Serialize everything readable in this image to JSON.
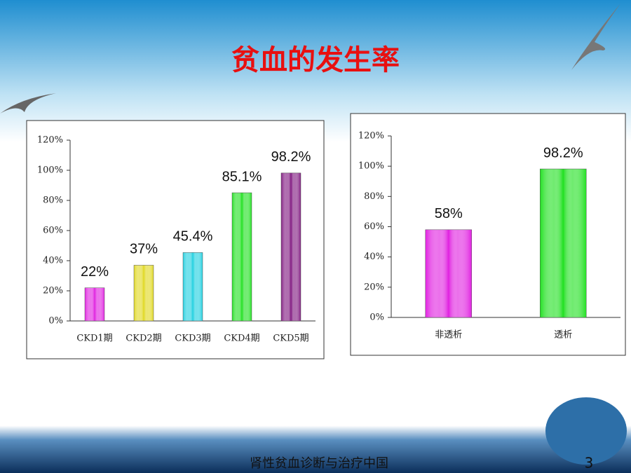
{
  "title": "贫血的发生率",
  "chart_data": [
    {
      "type": "bar",
      "categories": [
        "CKD1期",
        "CKD2期",
        "CKD3期",
        "CKD4期",
        "CKD5期"
      ],
      "values": [
        22,
        37,
        45.4,
        85.1,
        98.2
      ],
      "value_labels": [
        "22%",
        "37%",
        "45.4%",
        "85.1%",
        "98.2%"
      ],
      "colors": [
        "#e020e0",
        "#e0d820",
        "#20d0e0",
        "#20e020",
        "#801880"
      ],
      "ylim": [
        0,
        120
      ],
      "yticks": [
        {
          "value": 0,
          "label": "0%"
        },
        {
          "value": 20,
          "label": "20%"
        },
        {
          "value": 40,
          "label": "40%"
        },
        {
          "value": 60,
          "label": "60%"
        },
        {
          "value": 80,
          "label": "80%"
        },
        {
          "value": 100,
          "label": "100%"
        },
        {
          "value": 120,
          "label": "120%"
        }
      ]
    },
    {
      "type": "bar",
      "categories": [
        "非透析",
        "透析"
      ],
      "values": [
        58,
        98.2
      ],
      "value_labels": [
        "58%",
        "98.2%"
      ],
      "colors": [
        "#e020e0",
        "#20e020"
      ],
      "ylim": [
        0,
        120
      ],
      "yticks": [
        {
          "value": 0,
          "label": "0%"
        },
        {
          "value": 20,
          "label": "20%"
        },
        {
          "value": 40,
          "label": "40%"
        },
        {
          "value": 60,
          "label": "60%"
        },
        {
          "value": 80,
          "label": "80%"
        },
        {
          "value": 100,
          "label": "100%"
        },
        {
          "value": 120,
          "label": "120%"
        }
      ]
    }
  ],
  "footer": "肾性贫血诊断与治疗中国",
  "page_number": "3"
}
